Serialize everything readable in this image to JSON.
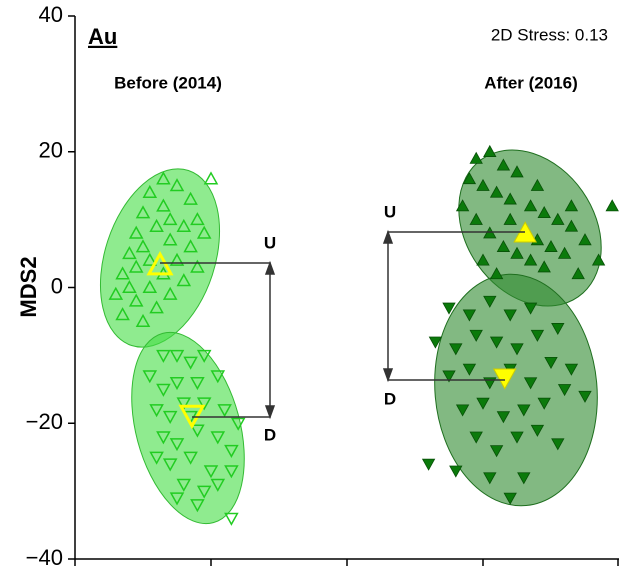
{
  "chart_data": {
    "type": "scatter",
    "panel_label": "Au",
    "stress": "2D Stress: 0.13",
    "groups": [
      "Before (2014)",
      "After (2016)"
    ],
    "ylabel": "MDS2",
    "bracket_labels": [
      "U",
      "D",
      "U",
      "D"
    ],
    "xlim": [
      -40,
      40
    ],
    "xticks": [
      -40,
      -20,
      0,
      20,
      40
    ],
    "ylim": [
      -40,
      40
    ],
    "yticks": [
      40,
      20,
      {
        "value": 0,
        "label": "0"
      },
      {
        "value": -20,
        "label": "−20"
      },
      {
        "value": -40,
        "label": "−40"
      }
    ],
    "series": [
      {
        "marker": "triangle-up",
        "filled": false,
        "color": "#22cc22",
        "points": [
          [
            -34,
            -1
          ],
          [
            -33,
            2
          ],
          [
            -32,
            5
          ],
          [
            -31,
            8
          ],
          [
            -30,
            11
          ],
          [
            -29,
            14
          ],
          [
            -27,
            16
          ],
          [
            -25,
            15
          ],
          [
            -23,
            13
          ],
          [
            -22,
            10
          ],
          [
            -21,
            8
          ],
          [
            -23,
            6
          ],
          [
            -25,
            4
          ],
          [
            -27,
            2
          ],
          [
            -29,
            0
          ],
          [
            -31,
            -2
          ],
          [
            -33,
            -4
          ],
          [
            -30,
            -5
          ],
          [
            -28,
            -3
          ],
          [
            -26,
            -1
          ],
          [
            -24,
            1
          ],
          [
            -22,
            3
          ],
          [
            -26,
            7
          ],
          [
            -28,
            9
          ],
          [
            -30,
            6
          ],
          [
            -32,
            0
          ],
          [
            -27,
            12
          ],
          [
            -24,
            9
          ],
          [
            -20,
            16
          ],
          [
            -29,
            4
          ],
          [
            -26,
            10
          ],
          [
            -31,
            3
          ]
        ]
      },
      {
        "marker": "triangle-down",
        "filled": false,
        "color": "#22cc22",
        "points": [
          [
            -27,
            -10
          ],
          [
            -25,
            -10
          ],
          [
            -23,
            -11
          ],
          [
            -21,
            -10
          ],
          [
            -29,
            -13
          ],
          [
            -27,
            -15
          ],
          [
            -25,
            -14
          ],
          [
            -22,
            -14
          ],
          [
            -19,
            -13
          ],
          [
            -28,
            -18
          ],
          [
            -26,
            -19
          ],
          [
            -24,
            -17
          ],
          [
            -21,
            -17
          ],
          [
            -18,
            -18
          ],
          [
            -27,
            -22
          ],
          [
            -25,
            -23
          ],
          [
            -22,
            -21
          ],
          [
            -19,
            -22
          ],
          [
            -17,
            -24
          ],
          [
            -26,
            -26
          ],
          [
            -23,
            -25
          ],
          [
            -20,
            -27
          ],
          [
            -17,
            -27
          ],
          [
            -24,
            -29
          ],
          [
            -21,
            -30
          ],
          [
            -19,
            -29
          ],
          [
            -25,
            -31
          ],
          [
            -22,
            -32
          ],
          [
            -17,
            -34
          ],
          [
            -28,
            -25
          ],
          [
            -16,
            -20
          ],
          [
            -23,
            -19
          ]
        ]
      },
      {
        "marker": "triangle-up",
        "filled": true,
        "color": "#0b7a0b",
        "points": [
          [
            19,
            19
          ],
          [
            21,
            20
          ],
          [
            23,
            18
          ],
          [
            25,
            17
          ],
          [
            18,
            16
          ],
          [
            20,
            15
          ],
          [
            22,
            14
          ],
          [
            24,
            13
          ],
          [
            27,
            12
          ],
          [
            29,
            11
          ],
          [
            31,
            10
          ],
          [
            33,
            9
          ],
          [
            35,
            7
          ],
          [
            37,
            4
          ],
          [
            39,
            12
          ],
          [
            17,
            12
          ],
          [
            19,
            10
          ],
          [
            21,
            8
          ],
          [
            23,
            6
          ],
          [
            25,
            5
          ],
          [
            27,
            4
          ],
          [
            29,
            3
          ],
          [
            32,
            5
          ],
          [
            34,
            2
          ],
          [
            20,
            4
          ],
          [
            22,
            2
          ],
          [
            26,
            8
          ],
          [
            28,
            7
          ],
          [
            30,
            6
          ],
          [
            24,
            10
          ],
          [
            33,
            12
          ],
          [
            28,
            15
          ]
        ]
      },
      {
        "marker": "triangle-down",
        "filled": true,
        "color": "#0b7a0b",
        "points": [
          [
            15,
            -3
          ],
          [
            18,
            -4
          ],
          [
            21,
            -2
          ],
          [
            24,
            -4
          ],
          [
            27,
            -3
          ],
          [
            13,
            -8
          ],
          [
            16,
            -9
          ],
          [
            19,
            -7
          ],
          [
            22,
            -8
          ],
          [
            25,
            -9
          ],
          [
            28,
            -7
          ],
          [
            31,
            -6
          ],
          [
            15,
            -13
          ],
          [
            18,
            -12
          ],
          [
            21,
            -14
          ],
          [
            24,
            -12
          ],
          [
            27,
            -14
          ],
          [
            30,
            -11
          ],
          [
            33,
            -12
          ],
          [
            17,
            -18
          ],
          [
            20,
            -17
          ],
          [
            23,
            -19
          ],
          [
            26,
            -18
          ],
          [
            29,
            -17
          ],
          [
            32,
            -15
          ],
          [
            19,
            -22
          ],
          [
            22,
            -24
          ],
          [
            25,
            -22
          ],
          [
            28,
            -21
          ],
          [
            31,
            -23
          ],
          [
            16,
            -27
          ],
          [
            21,
            -28
          ],
          [
            24,
            -31
          ],
          [
            26,
            -28
          ],
          [
            12,
            -26
          ],
          [
            35,
            -16
          ]
        ]
      }
    ],
    "centroids": [
      {
        "marker": "triangle-up",
        "filled": false,
        "color": "#ffff00",
        "x": -27.5,
        "y": 3.3
      },
      {
        "marker": "triangle-down",
        "filled": false,
        "color": "#ffff00",
        "x": -22.8,
        "y": -18.8
      },
      {
        "marker": "triangle-up",
        "filled": true,
        "color": "#ffff00",
        "x": 26.2,
        "y": 8.0
      },
      {
        "marker": "triangle-down",
        "filled": true,
        "color": "#ffff00",
        "x": 23.2,
        "y": -13.3
      }
    ]
  }
}
